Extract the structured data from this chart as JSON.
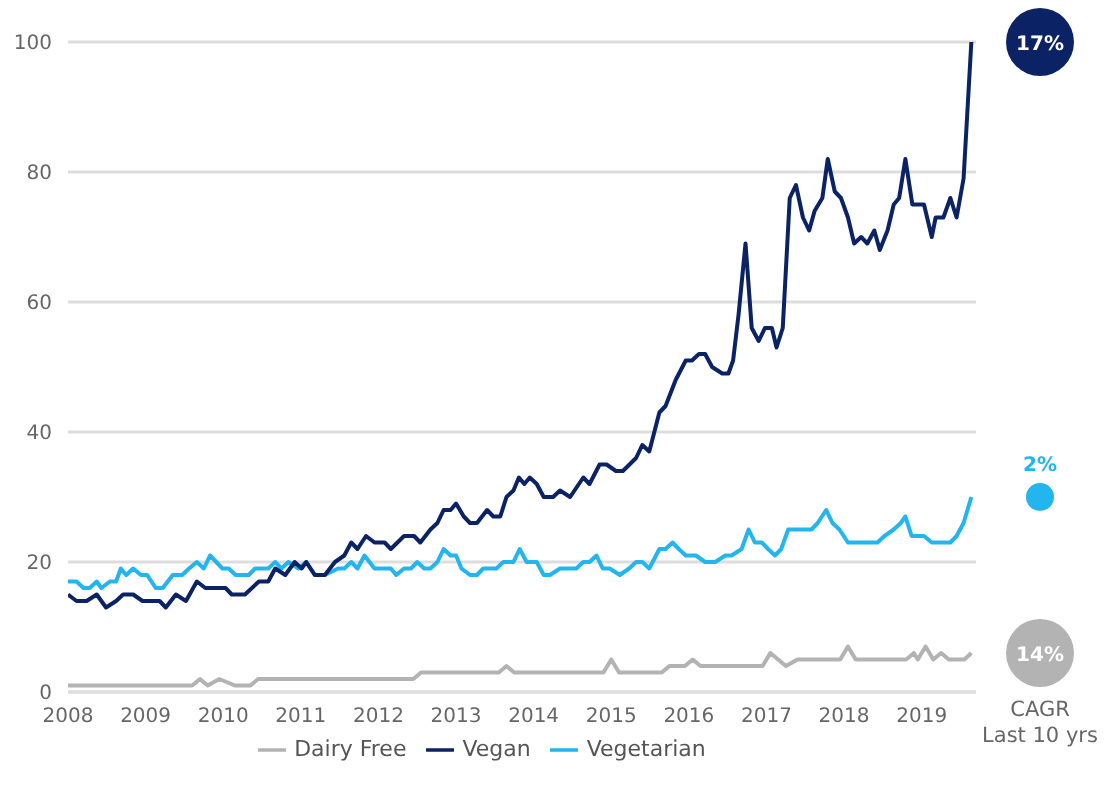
{
  "chart_data": {
    "type": "line",
    "xlim": [
      2008,
      2019.7
    ],
    "xticks": [
      2008,
      2009,
      2010,
      2011,
      2012,
      2013,
      2014,
      2015,
      2016,
      2017,
      2018,
      2019
    ],
    "ylim": [
      0,
      100
    ],
    "yticks": [
      0,
      20,
      40,
      60,
      80,
      100
    ],
    "grid": "y",
    "legend": "bottom",
    "marker": "none",
    "line_style": "solid",
    "series": [
      {
        "name": "Vegetarian",
        "color": "#22b5ee",
        "x": [
          2008.0,
          2008.11,
          2008.2,
          2008.28,
          2008.37,
          2008.43,
          2008.54,
          2008.62,
          2008.68,
          2008.75,
          2008.84,
          2008.94,
          2009.02,
          2009.13,
          2009.22,
          2009.35,
          2009.47,
          2009.56,
          2009.66,
          2009.75,
          2009.83,
          2009.99,
          2010.07,
          2010.16,
          2010.33,
          2010.41,
          2010.58,
          2010.67,
          2010.75,
          2010.84,
          2010.97,
          2011.07,
          2011.18,
          2011.31,
          2011.48,
          2011.56,
          2011.65,
          2011.73,
          2011.82,
          2011.95,
          2012.16,
          2012.23,
          2012.33,
          2012.42,
          2012.5,
          2012.59,
          2012.67,
          2012.76,
          2012.84,
          2012.93,
          2013.0,
          2013.07,
          2013.18,
          2013.27,
          2013.35,
          2013.52,
          2013.61,
          2013.74,
          2013.82,
          2013.91,
          2014.04,
          2014.13,
          2014.21,
          2014.34,
          2014.55,
          2014.64,
          2014.72,
          2014.81,
          2014.89,
          2014.98,
          2015.11,
          2015.23,
          2015.32,
          2015.4,
          2015.49,
          2015.62,
          2015.7,
          2015.79,
          2015.87,
          2015.96,
          2016.09,
          2016.21,
          2016.34,
          2016.47,
          2016.55,
          2016.68,
          2016.77,
          2016.85,
          2016.94,
          2017.02,
          2017.11,
          2017.19,
          2017.28,
          2017.36,
          2017.58,
          2017.66,
          2017.77,
          2017.85,
          2017.94,
          2018.05,
          2018.22,
          2018.43,
          2018.52,
          2018.64,
          2018.73,
          2018.79,
          2018.87,
          2019.03,
          2019.13,
          2019.37,
          2019.45,
          2019.54,
          2019.64
        ],
        "values": [
          17,
          17,
          16,
          16,
          17,
          16,
          17,
          17,
          19,
          18,
          19,
          18,
          18,
          16,
          16,
          18,
          18,
          19,
          20,
          19,
          21,
          19,
          19,
          18,
          18,
          19,
          19,
          20,
          19,
          20,
          19,
          20,
          18,
          18,
          19,
          19,
          20,
          19,
          21,
          19,
          19,
          18,
          19,
          19,
          20,
          19,
          19,
          20,
          22,
          21,
          21,
          19,
          18,
          18,
          19,
          19,
          20,
          20,
          22,
          20,
          20,
          18,
          18,
          19,
          19,
          20,
          20,
          21,
          19,
          19,
          18,
          19,
          20,
          20,
          19,
          22,
          22,
          23,
          22,
          21,
          21,
          20,
          20,
          21,
          21,
          22,
          25,
          23,
          23,
          22,
          21,
          22,
          25,
          25,
          25,
          26,
          28,
          26,
          25,
          23,
          23,
          23,
          24,
          25,
          26,
          27,
          24,
          24,
          23,
          23,
          24,
          26,
          30
        ]
      },
      {
        "name": "Vegan",
        "color": "#0b2265",
        "x": [
          2008.0,
          2008.11,
          2008.24,
          2008.37,
          2008.49,
          2008.62,
          2008.71,
          2008.84,
          2008.96,
          2009.18,
          2009.26,
          2009.39,
          2009.52,
          2009.66,
          2009.77,
          2010.03,
          2010.11,
          2010.28,
          2010.46,
          2010.58,
          2010.67,
          2010.8,
          2010.92,
          2011.01,
          2011.07,
          2011.18,
          2011.31,
          2011.44,
          2011.56,
          2011.65,
          2011.73,
          2011.84,
          2011.95,
          2012.08,
          2012.16,
          2012.33,
          2012.46,
          2012.54,
          2012.67,
          2012.76,
          2012.84,
          2012.93,
          2013.0,
          2013.1,
          2013.18,
          2013.27,
          2013.4,
          2013.48,
          2013.57,
          2013.65,
          2013.74,
          2013.81,
          2013.88,
          2013.95,
          2014.04,
          2014.13,
          2014.25,
          2014.34,
          2014.47,
          2014.64,
          2014.72,
          2014.85,
          2014.94,
          2015.06,
          2015.15,
          2015.32,
          2015.4,
          2015.49,
          2015.62,
          2015.7,
          2015.83,
          2015.96,
          2016.04,
          2016.13,
          2016.21,
          2016.3,
          2016.43,
          2016.51,
          2016.57,
          2016.64,
          2016.73,
          2016.81,
          2016.9,
          2016.98,
          2017.07,
          2017.13,
          2017.21,
          2017.3,
          2017.38,
          2017.47,
          2017.55,
          2017.62,
          2017.72,
          2017.79,
          2017.88,
          2017.96,
          2018.05,
          2018.13,
          2018.22,
          2018.3,
          2018.39,
          2018.46,
          2018.56,
          2018.64,
          2018.71,
          2018.79,
          2018.88,
          2019.03,
          2019.13,
          2019.18,
          2019.28,
          2019.37,
          2019.45,
          2019.54,
          2019.64
        ],
        "values": [
          15,
          14,
          14,
          15,
          13,
          14,
          15,
          15,
          14,
          14,
          13,
          15,
          14,
          17,
          16,
          16,
          15,
          15,
          17,
          17,
          19,
          18,
          20,
          19,
          20,
          18,
          18,
          20,
          21,
          23,
          22,
          24,
          23,
          23,
          22,
          24,
          24,
          23,
          25,
          26,
          28,
          28,
          29,
          27,
          26,
          26,
          28,
          27,
          27,
          30,
          31,
          33,
          32,
          33,
          32,
          30,
          30,
          31,
          30,
          33,
          32,
          35,
          35,
          34,
          34,
          36,
          38,
          37,
          43,
          44,
          48,
          51,
          51,
          52,
          52,
          50,
          49,
          49,
          51,
          58,
          69,
          56,
          54,
          56,
          56,
          53,
          56,
          76,
          78,
          73,
          71,
          74,
          76,
          82,
          77,
          76,
          73,
          69,
          70,
          69,
          71,
          68,
          71,
          75,
          76,
          82,
          75,
          75,
          70,
          73,
          73,
          76,
          73,
          79,
          100
        ]
      },
      {
        "name": "Dairy Free",
        "color": "#b3b3b3",
        "x": [
          2008.0,
          2009.6,
          2009.7,
          2009.8,
          2009.95,
          2010.15,
          2010.35,
          2010.45,
          2012.45,
          2012.55,
          2013.55,
          2013.65,
          2013.75,
          2014.9,
          2015.0,
          2015.1,
          2015.65,
          2015.75,
          2015.95,
          2016.05,
          2016.15,
          2016.95,
          2017.05,
          2017.25,
          2017.4,
          2017.95,
          2018.05,
          2018.15,
          2018.8,
          2018.9,
          2018.95,
          2019.05,
          2019.15,
          2019.25,
          2019.35,
          2019.55,
          2019.64
        ],
        "values": [
          1,
          1,
          2,
          1,
          2,
          1,
          1,
          2,
          2,
          3,
          3,
          4,
          3,
          3,
          5,
          3,
          3,
          4,
          4,
          5,
          4,
          4,
          6,
          4,
          5,
          5,
          7,
          5,
          5,
          6,
          5,
          7,
          5,
          6,
          5,
          5,
          6
        ]
      }
    ],
    "annotations": [
      "2%",
      "17%",
      "14%",
      "CAGR\nLast 10 yrs"
    ]
  }
}
